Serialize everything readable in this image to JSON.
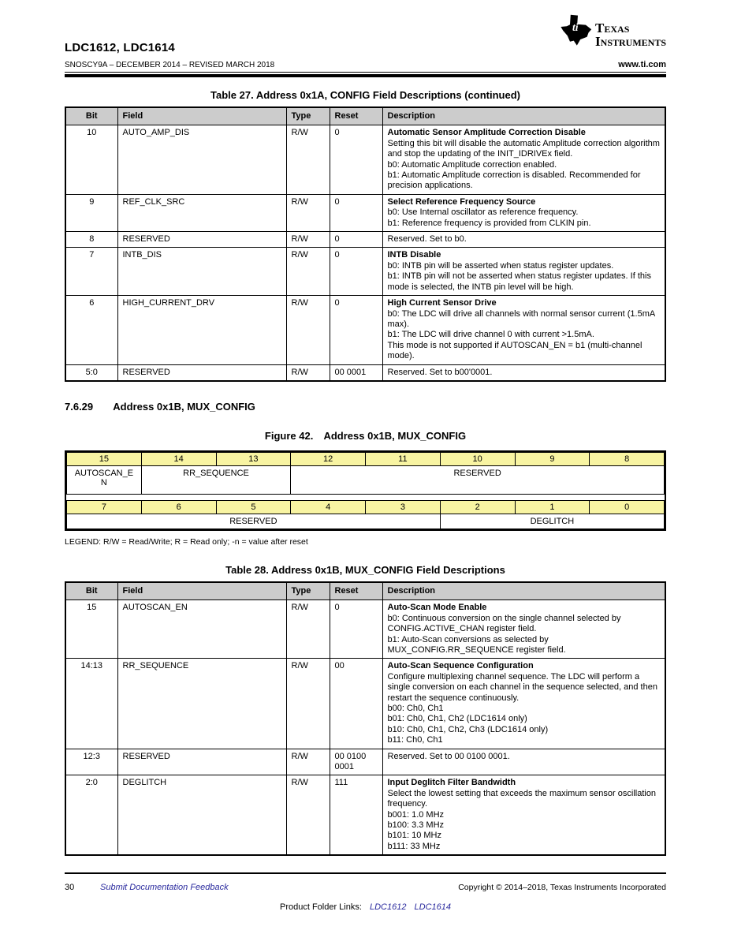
{
  "colors": {
    "accent_yellow": "#f8f4a2",
    "header_gray": "#cccccc",
    "link_blue": "#2a2a9e"
  },
  "header": {
    "part_numbers": "LDC1612, LDC1614",
    "doc_revision": "SNOSCY9A – DECEMBER 2014 – REVISED MARCH 2018",
    "website": "www.ti.com",
    "logo": {
      "line1": "Texas",
      "line2": "Instruments",
      "ti_letters": "ti"
    }
  },
  "table27": {
    "title": "Table 27. Address 0x1A, CONFIG Field Descriptions (continued)",
    "columns": [
      "Bit",
      "Field",
      "Type",
      "Reset",
      "Description"
    ],
    "rows": [
      {
        "bit": "10",
        "field": "AUTO_AMP_DIS",
        "type": "R/W",
        "reset": "0",
        "desc_title": "Automatic Sensor Amplitude Correction Disable",
        "desc_lines": [
          "Setting this bit will disable the automatic Amplitude correction algorithm and stop the updating of the INIT_IDRIVEx field.",
          "b0: Automatic Amplitude correction enabled.",
          "b1: Automatic Amplitude correction is disabled. Recommended for precision applications."
        ]
      },
      {
        "bit": "9",
        "field": "REF_CLK_SRC",
        "type": "R/W",
        "reset": "0",
        "desc_title": "Select Reference Frequency Source",
        "desc_lines": [
          "b0: Use Internal oscillator as reference frequency.",
          "b1: Reference frequency is provided from CLKIN pin."
        ]
      },
      {
        "bit": "8",
        "field": "RESERVED",
        "type": "R/W",
        "reset": "0",
        "desc_title": "",
        "desc_lines": [
          "Reserved. Set to b0."
        ]
      },
      {
        "bit": "7",
        "field": "INTB_DIS",
        "type": "R/W",
        "reset": "0",
        "desc_title": "INTB Disable",
        "desc_lines": [
          "b0: INTB pin will be asserted when status register updates.",
          "b1: INTB pin will not be asserted when status register updates. If this mode is selected, the INTB pin level will be high."
        ]
      },
      {
        "bit": "6",
        "field": "HIGH_CURRENT_DRV",
        "type": "R/W",
        "reset": "0",
        "desc_title": "High Current Sensor Drive",
        "desc_lines": [
          "b0: The LDC will drive all channels with normal sensor current (1.5mA max).",
          "b1: The LDC will drive channel 0 with current >1.5mA.",
          "This mode is not supported if AUTOSCAN_EN = b1 (multi-channel mode)."
        ]
      },
      {
        "bit": "5:0",
        "field": "RESERVED",
        "type": "R/W",
        "reset": "00 0001",
        "desc_title": "",
        "desc_lines": [
          "Reserved. Set to b00'0001."
        ]
      }
    ]
  },
  "section": {
    "number": "7.6.29",
    "title": "Address 0x1B, MUX_CONFIG"
  },
  "figure42": {
    "label": "Figure 42.",
    "title": "Address 0x1B, MUX_CONFIG",
    "bits_high": [
      "15",
      "14",
      "13",
      "12",
      "11",
      "10",
      "9",
      "8"
    ],
    "fields_high": [
      "AUTOSCAN_EN",
      "RR_SEQUENCE",
      "RESERVED"
    ],
    "bits_low": [
      "7",
      "6",
      "5",
      "4",
      "3",
      "2",
      "1",
      "0"
    ],
    "fields_low": [
      "RESERVED",
      "DEGLITCH"
    ],
    "legend": "LEGEND: R/W = Read/Write; R = Read only; -n = value after reset"
  },
  "table28": {
    "title": "Table 28. Address 0x1B, MUX_CONFIG Field Descriptions",
    "columns": [
      "Bit",
      "Field",
      "Type",
      "Reset",
      "Description"
    ],
    "rows": [
      {
        "bit": "15",
        "field": "AUTOSCAN_EN",
        "type": "R/W",
        "reset": "0",
        "desc_title": "Auto-Scan Mode Enable",
        "desc_lines": [
          "b0: Continuous conversion on the single channel selected by CONFIG.ACTIVE_CHAN register field.",
          "b1: Auto-Scan conversions as selected by MUX_CONFIG.RR_SEQUENCE register field."
        ]
      },
      {
        "bit": "14:13",
        "field": "RR_SEQUENCE",
        "type": "R/W",
        "reset": "00",
        "desc_title": "Auto-Scan Sequence Configuration",
        "desc_lines": [
          "Configure multiplexing channel sequence. The LDC will perform a single conversion on each channel in the sequence selected, and then restart the sequence continuously.",
          "b00: Ch0, Ch1",
          "b01: Ch0, Ch1, Ch2 (LDC1614 only)",
          "b10: Ch0, Ch1, Ch2, Ch3 (LDC1614 only)",
          "b11: Ch0, Ch1"
        ]
      },
      {
        "bit": "12:3",
        "field": "RESERVED",
        "type": "R/W",
        "reset": "00 0100 0001",
        "desc_title": "",
        "desc_lines": [
          "Reserved. Set to 00 0100 0001."
        ]
      },
      {
        "bit": "2:0",
        "field": "DEGLITCH",
        "type": "R/W",
        "reset": "111",
        "desc_title": "Input Deglitch Filter Bandwidth",
        "desc_lines": [
          "Select the lowest setting that exceeds the maximum sensor oscillation frequency.",
          "b001: 1.0 MHz",
          "b100: 3.3 MHz",
          "b101: 10 MHz",
          "b111: 33 MHz"
        ]
      }
    ]
  },
  "footer": {
    "page_number": "30",
    "feedback_link": "Submit Documentation Feedback",
    "copyright": "Copyright © 2014–2018, Texas Instruments Incorporated",
    "product_folder_label": "Product Folder Links:",
    "link1": "LDC1612",
    "link2": "LDC1614"
  }
}
